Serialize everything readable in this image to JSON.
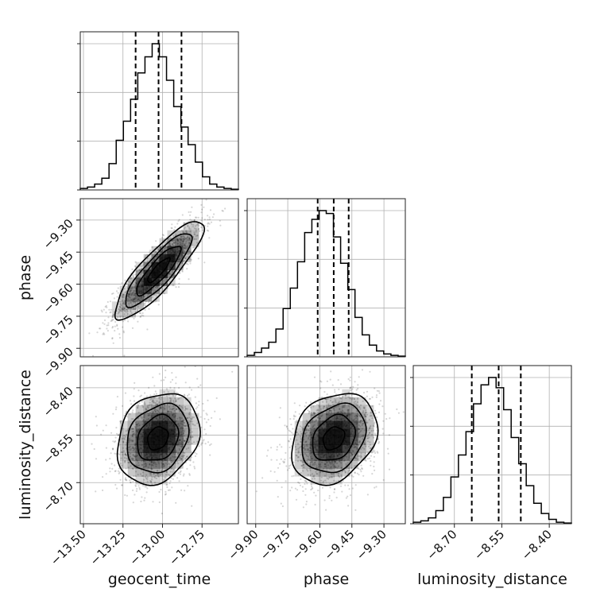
{
  "chart_data": {
    "type": "corner",
    "parameters": [
      {
        "name": "geocent_time",
        "label": "geocent_time",
        "range": [
          -13.52,
          -12.52
        ],
        "ticks": [
          -13.5,
          -13.25,
          -13.0,
          -12.75
        ],
        "tick_labels": [
          "−13.50",
          "−13.25",
          "−13.00",
          "−12.75"
        ],
        "hist_bins": [
          0.01,
          0.02,
          0.04,
          0.08,
          0.18,
          0.34,
          0.47,
          0.62,
          0.8,
          0.91,
          1.0,
          0.91,
          0.75,
          0.57,
          0.43,
          0.31,
          0.19,
          0.09,
          0.04,
          0.02,
          0.01,
          0.005
        ],
        "quantiles": [
          -13.17,
          -13.025,
          -12.88
        ]
      },
      {
        "name": "phase",
        "label": "phase",
        "range": [
          -9.94,
          -9.2
        ],
        "ticks": [
          -9.9,
          -9.75,
          -9.6,
          -9.45,
          -9.3
        ],
        "tick_labels": [
          "−9.90",
          "−9.75",
          "−9.60",
          "−9.45",
          "−9.30"
        ],
        "hist_bins": [
          0.01,
          0.03,
          0.06,
          0.1,
          0.19,
          0.33,
          0.47,
          0.65,
          0.85,
          0.94,
          1.0,
          0.98,
          0.82,
          0.64,
          0.46,
          0.27,
          0.15,
          0.08,
          0.04,
          0.02,
          0.01,
          0.005
        ],
        "quantiles": [
          -9.61,
          -9.535,
          -9.465
        ]
      },
      {
        "name": "luminosity_distance",
        "label": "luminosity_distance",
        "range": [
          -8.83,
          -8.33
        ],
        "ticks": [
          -8.7,
          -8.55,
          -8.4
        ],
        "tick_labels": [
          "−8.70",
          "−8.55",
          "−8.40"
        ],
        "hist_bins": [
          0.01,
          0.02,
          0.04,
          0.09,
          0.18,
          0.32,
          0.47,
          0.63,
          0.82,
          0.95,
          1.0,
          0.93,
          0.78,
          0.59,
          0.41,
          0.26,
          0.14,
          0.07,
          0.03,
          0.01,
          0.005
        ],
        "quantiles": [
          -8.645,
          -8.56,
          -8.49
        ]
      }
    ],
    "pairs": [
      {
        "x": "geocent_time",
        "y": "phase",
        "mean": [
          -13.025,
          -9.535
        ],
        "sd": [
          0.14,
          0.115
        ],
        "corr": 0.86
      },
      {
        "x": "geocent_time",
        "y": "luminosity_distance",
        "mean": [
          -13.03,
          -8.56
        ],
        "sd": [
          0.13,
          0.072
        ],
        "corr": 0.22
      },
      {
        "x": "phase",
        "y": "luminosity_distance",
        "mean": [
          -9.535,
          -8.56
        ],
        "sd": [
          0.1,
          0.072
        ],
        "corr": 0.25
      }
    ],
    "contour_levels_sigma": [
      0.5,
      1.0,
      1.5,
      2.0
    ],
    "colors": {
      "line": "#000000",
      "density": "#000000",
      "grid": "#b0b0b0",
      "background": "#ffffff"
    },
    "grid": true
  }
}
